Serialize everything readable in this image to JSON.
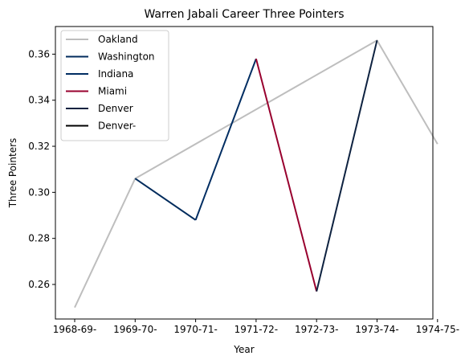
{
  "chart_data": {
    "type": "line",
    "title": "Warren Jabali Career Three Pointers",
    "xlabel": "Year",
    "ylabel": "Three Pointers",
    "categories": [
      "1968-69-",
      "1969-70-",
      "1970-71-",
      "1971-72-",
      "1972-73-",
      "1973-74-",
      "1974-75-"
    ],
    "ylim": [
      0.245,
      0.372
    ],
    "yticks": [
      {
        "value": 0.26,
        "label": "0.26"
      },
      {
        "value": 0.28,
        "label": "0.28"
      },
      {
        "value": 0.3,
        "label": "0.30"
      },
      {
        "value": 0.32,
        "label": "0.32"
      },
      {
        "value": 0.34,
        "label": "0.34"
      },
      {
        "value": 0.36,
        "label": "0.36"
      }
    ],
    "legend_position": "upper-left",
    "grid": false,
    "series": [
      {
        "name": "Oakland",
        "color": "#bebebe",
        "points": [
          {
            "x": "1968-69-",
            "y": 0.25
          },
          {
            "x": "1969-70-",
            "y": 0.306
          },
          {
            "x": "1973-74-",
            "y": 0.366
          },
          {
            "x": "1974-75-",
            "y": 0.321
          }
        ]
      },
      {
        "name": "Washington",
        "color": "#002b5c",
        "points": [
          {
            "x": "1969-70-",
            "y": 0.306
          },
          {
            "x": "1970-71-",
            "y": 0.288
          }
        ]
      },
      {
        "name": "Indiana",
        "color": "#002d62",
        "points": [
          {
            "x": "1970-71-",
            "y": 0.288
          },
          {
            "x": "1971-72-",
            "y": 0.358
          }
        ]
      },
      {
        "name": "Miami",
        "color": "#98002e",
        "points": [
          {
            "x": "1971-72-",
            "y": 0.358
          },
          {
            "x": "1972-73-",
            "y": 0.257
          }
        ]
      },
      {
        "name": "Denver",
        "color": "#0e2240",
        "points": [
          {
            "x": "1972-73-",
            "y": 0.257
          },
          {
            "x": "1973-74-",
            "y": 0.366
          }
        ]
      },
      {
        "name": "Denver-",
        "color": "#000000",
        "points": []
      }
    ]
  }
}
